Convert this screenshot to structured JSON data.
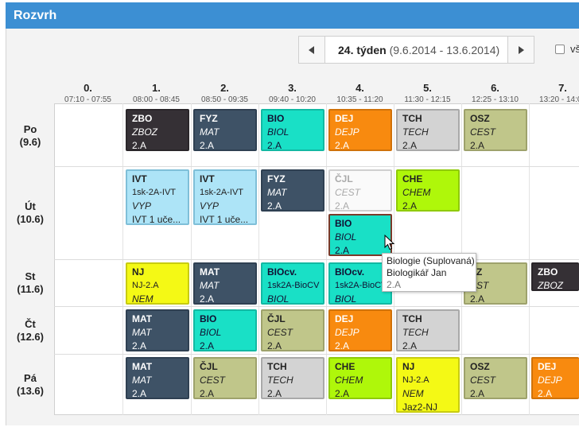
{
  "app": {
    "title": "Rozvrh"
  },
  "week": {
    "label": "24. týden",
    "range": "(9.6.2014 - 13.6.2014)",
    "prev_icon": "triangle-left",
    "next_icon": "triangle-right"
  },
  "checkbox": {
    "label": "vš"
  },
  "periods": [
    {
      "num": "0.",
      "time": "07:10 - 07:55"
    },
    {
      "num": "1.",
      "time": "08:00 - 08:45"
    },
    {
      "num": "2.",
      "time": "08:50 - 09:35"
    },
    {
      "num": "3.",
      "time": "09:40 - 10:20"
    },
    {
      "num": "4.",
      "time": "10:35 - 11:20"
    },
    {
      "num": "5.",
      "time": "11:30 - 12:15"
    },
    {
      "num": "6.",
      "time": "12:25 - 13:10"
    },
    {
      "num": "7.",
      "time": "13:20 - 14:05"
    }
  ],
  "days": [
    {
      "name": "Po",
      "date": "(9.6)"
    },
    {
      "name": "Út",
      "date": "(10.6)"
    },
    {
      "name": "St",
      "date": "(11.6)"
    },
    {
      "name": "Čt",
      "date": "(12.6)"
    },
    {
      "name": "Pá",
      "date": "(13.6)"
    }
  ],
  "lessons": {
    "po1": [
      "ZBO",
      "ZBOZ",
      "2.A"
    ],
    "po2": [
      "FYZ",
      "MAT",
      "2.A"
    ],
    "po3": [
      "BIO",
      "BIOL",
      "2.A"
    ],
    "po4": [
      "DEJ",
      "DEJP",
      "2.A"
    ],
    "po5": [
      "TCH",
      "TECH",
      "2.A"
    ],
    "po6": [
      "OSZ",
      "CEST",
      "2.A"
    ],
    "ut1": [
      "IVT",
      "1sk-2A-IVT",
      "VYP",
      "IVT 1 uče..."
    ],
    "ut2": [
      "IVT",
      "1sk-2A-IVT",
      "VYP",
      "IVT 1 uče..."
    ],
    "ut3": [
      "FYZ",
      "MAT",
      "2.A"
    ],
    "ut4a": [
      "ČJL",
      "CEST",
      "2.A"
    ],
    "ut4b": [
      "BIO",
      "BIOL",
      "2.A"
    ],
    "ut5": [
      "CHE",
      "CHEM",
      "2.A"
    ],
    "st1": [
      "NJ",
      "NJ-2.A",
      "NEM"
    ],
    "st2": [
      "MAT",
      "MAT",
      "2.A"
    ],
    "st3": [
      "BIOcv.",
      "1sk2A-BioCV",
      "BIOL"
    ],
    "st4": [
      "BIOcv.",
      "1sk2A-BioCV",
      "BIOL"
    ],
    "st5": [
      "SZ",
      "EST",
      "2.A"
    ],
    "st6": [
      "ZBO",
      "ZBOZ"
    ],
    "ct1": [
      "MAT",
      "MAT",
      "2.A"
    ],
    "ct2": [
      "BIO",
      "BIOL",
      "2.A"
    ],
    "ct3": [
      "ČJL",
      "CEST",
      "2.A"
    ],
    "ct4": [
      "DEJ",
      "DEJP",
      "2.A"
    ],
    "ct5": [
      "TCH",
      "TECH",
      "2.A"
    ],
    "pa1": [
      "MAT",
      "MAT",
      "2.A"
    ],
    "pa2": [
      "ČJL",
      "CEST",
      "2.A"
    ],
    "pa3": [
      "TCH",
      "TECH",
      "2.A"
    ],
    "pa4": [
      "CHE",
      "CHEM",
      "2.A"
    ],
    "pa5": [
      "NJ",
      "NJ-2.A",
      "NEM",
      "Jaz2-NJ"
    ],
    "pa6": [
      "OSZ",
      "CEST",
      "2.A"
    ],
    "pa7": [
      "DEJ",
      "DEJP",
      "2.A"
    ]
  },
  "tooltip": {
    "line1": "Biologie (Suplovaná)",
    "line2": "Biologikář Jan",
    "line3": "2.A"
  },
  "colors": {
    "titlebar": "#3c8fd3",
    "ZBO": "#353035",
    "MAT": "#3e5266",
    "BIO": "#19e0c6",
    "DEJ": "#f88a0f",
    "TCH": "#d3d3d3",
    "OSZ": "#c0c68a",
    "IVT": "#ade4f7",
    "CHE": "#aff70a",
    "NJ": "#f4f915"
  }
}
